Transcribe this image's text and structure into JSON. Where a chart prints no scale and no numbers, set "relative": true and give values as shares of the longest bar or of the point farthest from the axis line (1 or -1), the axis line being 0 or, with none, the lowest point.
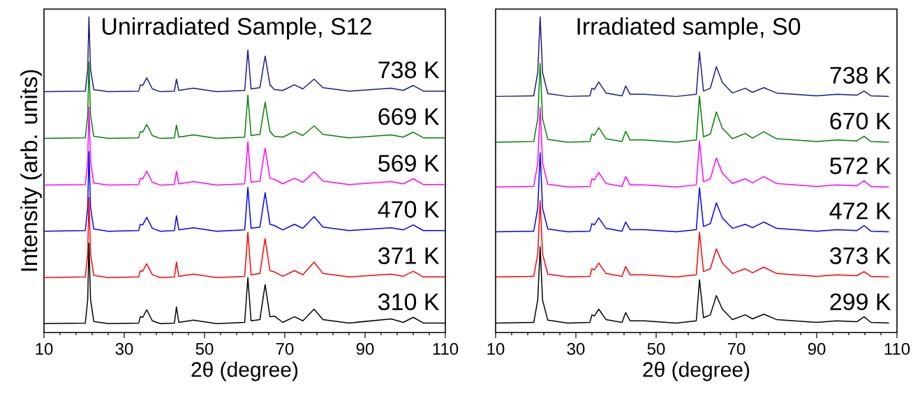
{
  "chart_data": [
    {
      "type": "line",
      "title": "Unirradiated Sample, S12",
      "xlabel": "2θ (degree)",
      "ylabel": "Intensity (arb. units)",
      "relative": true,
      "xlim": [
        10,
        110
      ],
      "xticks": [
        10,
        30,
        50,
        70,
        90,
        110
      ],
      "x": [
        10,
        20.3,
        20.9,
        21.2,
        21.6,
        22.4,
        26,
        33.6,
        34.0,
        34.6,
        35.6,
        37.0,
        39,
        42.5,
        43.0,
        43.6,
        47.2,
        53,
        60.0,
        60.8,
        61.6,
        63.8,
        65.1,
        66.3,
        67.4,
        69.5,
        72.4,
        74.5,
        77.3,
        79.5,
        86,
        96.5,
        99.5,
        102,
        104.5,
        110
      ],
      "series": [
        {
          "name": "738 K",
          "color": "#1a1a8c",
          "values": [
            0.763,
            0.765,
            0.834,
            1,
            0.834,
            0.77,
            0.763,
            0.765,
            0.785,
            0.783,
            0.807,
            0.772,
            0.763,
            0.765,
            0.803,
            0.767,
            0.774,
            0.763,
            0.767,
            0.895,
            0.772,
            0.776,
            0.876,
            0.785,
            0.77,
            0.767,
            0.785,
            0.772,
            0.803,
            0.776,
            0.765,
            0.774,
            0.767,
            0.783,
            0.765,
            0.765
          ]
        },
        {
          "name": "669 K",
          "color": "#008000",
          "values": [
            0.615,
            0.617,
            0.688,
            0.857,
            0.688,
            0.622,
            0.615,
            0.617,
            0.637,
            0.635,
            0.659,
            0.624,
            0.615,
            0.617,
            0.657,
            0.619,
            0.626,
            0.615,
            0.619,
            0.752,
            0.624,
            0.628,
            0.73,
            0.637,
            0.622,
            0.619,
            0.637,
            0.624,
            0.655,
            0.628,
            0.617,
            0.626,
            0.619,
            0.635,
            0.617,
            0.617
          ]
        },
        {
          "name": "569 K",
          "color": "#ff00ff",
          "values": [
            0.467,
            0.469,
            0.541,
            0.714,
            0.541,
            0.474,
            0.467,
            0.469,
            0.489,
            0.487,
            0.511,
            0.476,
            0.467,
            0.469,
            0.511,
            0.471,
            0.478,
            0.467,
            0.471,
            0.604,
            0.476,
            0.48,
            0.584,
            0.489,
            0.485,
            0.471,
            0.489,
            0.476,
            0.509,
            0.48,
            0.469,
            0.478,
            0.471,
            0.487,
            0.469,
            0.469
          ]
        },
        {
          "name": "470 K",
          "color": "#0000ff",
          "values": [
            0.321,
            0.323,
            0.397,
            0.573,
            0.397,
            0.328,
            0.321,
            0.323,
            0.343,
            0.341,
            0.365,
            0.33,
            0.321,
            0.323,
            0.37,
            0.325,
            0.332,
            0.321,
            0.325,
            0.46,
            0.33,
            0.334,
            0.443,
            0.343,
            0.339,
            0.325,
            0.343,
            0.33,
            0.367,
            0.334,
            0.323,
            0.332,
            0.325,
            0.341,
            0.323,
            0.323
          ]
        },
        {
          "name": "371 K",
          "color": "#ff0000",
          "values": [
            0.174,
            0.176,
            0.25,
            0.428,
            0.25,
            0.181,
            0.174,
            0.176,
            0.196,
            0.194,
            0.218,
            0.183,
            0.174,
            0.176,
            0.223,
            0.178,
            0.185,
            0.174,
            0.178,
            0.318,
            0.183,
            0.187,
            0.298,
            0.196,
            0.192,
            0.178,
            0.196,
            0.183,
            0.223,
            0.187,
            0.176,
            0.185,
            0.178,
            0.194,
            0.176,
            0.176
          ]
        },
        {
          "name": "310 K",
          "color": "#000000",
          "values": [
            0.028,
            0.03,
            0.105,
            0.283,
            0.105,
            0.035,
            0.028,
            0.03,
            0.05,
            0.048,
            0.072,
            0.037,
            0.028,
            0.03,
            0.081,
            0.032,
            0.039,
            0.028,
            0.032,
            0.174,
            0.037,
            0.041,
            0.152,
            0.05,
            0.052,
            0.032,
            0.05,
            0.037,
            0.074,
            0.041,
            0.03,
            0.043,
            0.032,
            0.048,
            0.03,
            0.03
          ]
        }
      ]
    },
    {
      "type": "line",
      "title": "Irradiated sample, S0",
      "xlabel": "2θ (degree)",
      "relative": true,
      "xlim": [
        10,
        110
      ],
      "xticks": [
        10,
        30,
        50,
        70,
        90,
        110
      ],
      "x": [
        10,
        19.5,
        20.5,
        21.1,
        21.7,
        23,
        28,
        33.5,
        34.0,
        34.6,
        35.7,
        37.5,
        41.5,
        42.4,
        43.5,
        47,
        55,
        60.0,
        60.8,
        61.8,
        63.5,
        65.0,
        66.5,
        69,
        72.2,
        74,
        76.8,
        80,
        90,
        95,
        100,
        101.8,
        103.5,
        108
      ],
      "series": [
        {
          "name": "738 K",
          "color": "#1a1a8c",
          "values": [
            0.748,
            0.75,
            0.824,
            1,
            0.824,
            0.757,
            0.748,
            0.75,
            0.774,
            0.77,
            0.794,
            0.759,
            0.75,
            0.781,
            0.755,
            0.755,
            0.748,
            0.755,
            0.889,
            0.765,
            0.774,
            0.842,
            0.792,
            0.759,
            0.774,
            0.761,
            0.776,
            0.759,
            0.75,
            0.755,
            0.752,
            0.765,
            0.75,
            0.748
          ]
        },
        {
          "name": "670 K",
          "color": "#008000",
          "values": [
            0.603,
            0.605,
            0.678,
            0.853,
            0.678,
            0.612,
            0.603,
            0.605,
            0.629,
            0.625,
            0.649,
            0.614,
            0.605,
            0.638,
            0.61,
            0.61,
            0.603,
            0.61,
            0.749,
            0.62,
            0.629,
            0.699,
            0.647,
            0.614,
            0.631,
            0.616,
            0.636,
            0.614,
            0.605,
            0.61,
            0.607,
            0.622,
            0.605,
            0.603
          ]
        },
        {
          "name": "572 K",
          "color": "#ff00ff",
          "values": [
            0.461,
            0.463,
            0.537,
            0.714,
            0.537,
            0.47,
            0.461,
            0.463,
            0.487,
            0.483,
            0.507,
            0.472,
            0.463,
            0.494,
            0.468,
            0.468,
            0.461,
            0.468,
            0.607,
            0.478,
            0.487,
            0.553,
            0.505,
            0.472,
            0.487,
            0.474,
            0.494,
            0.472,
            0.463,
            0.468,
            0.465,
            0.481,
            0.463,
            0.461
          ]
        },
        {
          "name": "472 K",
          "color": "#0000ff",
          "values": [
            0.319,
            0.321,
            0.394,
            0.57,
            0.394,
            0.328,
            0.319,
            0.321,
            0.345,
            0.341,
            0.363,
            0.33,
            0.321,
            0.35,
            0.326,
            0.326,
            0.319,
            0.326,
            0.459,
            0.336,
            0.345,
            0.411,
            0.363,
            0.33,
            0.343,
            0.332,
            0.35,
            0.33,
            0.321,
            0.326,
            0.323,
            0.339,
            0.321,
            0.319
          ]
        },
        {
          "name": "373 K",
          "color": "#ff0000",
          "values": [
            0.176,
            0.178,
            0.249,
            0.418,
            0.249,
            0.185,
            0.176,
            0.178,
            0.202,
            0.198,
            0.22,
            0.187,
            0.178,
            0.209,
            0.183,
            0.183,
            0.176,
            0.183,
            0.318,
            0.193,
            0.202,
            0.265,
            0.22,
            0.187,
            0.202,
            0.189,
            0.207,
            0.187,
            0.178,
            0.183,
            0.18,
            0.193,
            0.178,
            0.176
          ]
        },
        {
          "name": "299 K",
          "color": "#000000",
          "values": [
            0.03,
            0.032,
            0.103,
            0.272,
            0.103,
            0.039,
            0.03,
            0.032,
            0.056,
            0.052,
            0.074,
            0.041,
            0.032,
            0.063,
            0.037,
            0.037,
            0.03,
            0.037,
            0.167,
            0.047,
            0.056,
            0.117,
            0.074,
            0.041,
            0.056,
            0.043,
            0.058,
            0.041,
            0.032,
            0.037,
            0.034,
            0.05,
            0.032,
            0.03
          ]
        }
      ]
    }
  ]
}
